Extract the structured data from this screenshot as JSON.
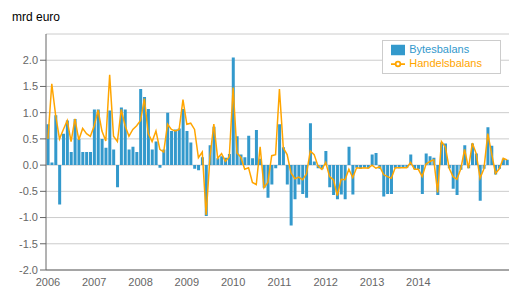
{
  "chart_data": {
    "type": "bar",
    "title": "mrd euro",
    "categories": [
      "2006",
      null,
      null,
      null,
      null,
      null,
      null,
      null,
      null,
      null,
      null,
      null,
      "2007",
      null,
      null,
      null,
      null,
      null,
      null,
      null,
      null,
      null,
      null,
      null,
      "2008",
      null,
      null,
      null,
      null,
      null,
      null,
      null,
      null,
      null,
      null,
      null,
      "2009",
      null,
      null,
      null,
      null,
      null,
      null,
      null,
      null,
      null,
      null,
      null,
      "2010",
      null,
      null,
      null,
      null,
      null,
      null,
      null,
      null,
      null,
      null,
      null,
      "2011",
      null,
      null,
      null,
      null,
      null,
      null,
      null,
      null,
      null,
      null,
      null,
      "2012",
      null,
      null,
      null,
      null,
      null,
      null,
      null,
      null,
      null,
      null,
      null,
      "2013",
      null,
      null,
      null,
      null,
      null,
      null,
      null,
      null,
      null,
      null,
      null,
      "2014",
      null,
      null,
      null,
      null,
      null,
      null,
      null,
      null,
      null,
      null,
      null,
      null,
      null,
      null,
      null,
      null,
      null,
      null,
      null,
      null,
      null,
      null,
      null
    ],
    "series": [
      {
        "name": "Bytesbalans",
        "type": "bar",
        "color": "#3399CC",
        "values": [
          0.78,
          0.05,
          0.95,
          -0.75,
          0.6,
          0.85,
          0.25,
          0.88,
          0.5,
          0.25,
          0.25,
          0.25,
          1.06,
          1.06,
          0.5,
          0.33,
          1.04,
          0.3,
          -0.42,
          1.1,
          1.06,
          0.3,
          0.35,
          0.25,
          1.45,
          1.3,
          1.07,
          0.3,
          0.45,
          -0.05,
          0.3,
          1.0,
          0.65,
          0.68,
          0.7,
          1.07,
          0.65,
          0.43,
          -0.07,
          -0.1,
          0.15,
          -0.97,
          0.38,
          0.73,
          0.13,
          0.17,
          0.14,
          0.21,
          2.05,
          0.55,
          0.2,
          0.15,
          0.56,
          0.13,
          0.67,
          0.12,
          -0.43,
          -0.62,
          -0.37,
          -0.06,
          0.78,
          0.34,
          -0.37,
          -1.15,
          -0.65,
          -0.37,
          -0.55,
          -0.62,
          0.8,
          0.07,
          -0.06,
          -0.08,
          0.27,
          -0.42,
          -0.57,
          -0.65,
          -0.56,
          -0.65,
          0.35,
          -0.56,
          -0.05,
          -0.07,
          -0.05,
          -0.06,
          0.2,
          0.23,
          -0.07,
          -0.6,
          -0.55,
          -0.55,
          -0.06,
          -0.06,
          -0.05,
          -0.05,
          0.2,
          -0.08,
          -0.08,
          -0.55,
          0.22,
          0.17,
          0.14,
          -0.57,
          0.43,
          0.41,
          -0.06,
          -0.45,
          -0.57,
          -0.09,
          0.38,
          -0.06,
          0.41,
          0.22,
          -0.68,
          -0.07,
          0.72,
          0.37,
          -0.18,
          -0.07,
          0.12,
          0.1
        ]
      },
      {
        "name": "Handelsbalans",
        "type": "line",
        "color": "#FFA500",
        "values": [
          0.5,
          1.55,
          0.95,
          0.5,
          0.68,
          0.85,
          0.45,
          0.88,
          0.48,
          0.7,
          0.6,
          0.55,
          0.75,
          1.05,
          0.65,
          0.46,
          1.72,
          0.55,
          0.45,
          1.06,
          0.75,
          0.55,
          0.68,
          0.75,
          0.85,
          1.27,
          0.6,
          0.45,
          0.65,
          0.3,
          0.25,
          0.78,
          0.68,
          0.65,
          0.68,
          1.25,
          0.78,
          0.8,
          0.68,
          0.14,
          0.25,
          -0.95,
          0.16,
          0.78,
          0.13,
          0.22,
          0.07,
          0.16,
          1.48,
          0.23,
          0.15,
          -0.08,
          -0.05,
          -0.33,
          -0.37,
          0.35,
          -0.43,
          -0.33,
          0.18,
          0.2,
          1.45,
          0.33,
          0.2,
          -0.15,
          -0.26,
          -0.23,
          -0.28,
          -0.17,
          0.27,
          0.2,
          -0.02,
          -0.08,
          0.05,
          -0.22,
          -0.28,
          -0.58,
          -0.27,
          -0.28,
          -0.08,
          -0.24,
          -0.05,
          -0.06,
          -0.05,
          -0.06,
          0.0,
          -0.06,
          -0.03,
          -0.18,
          -0.22,
          -0.25,
          -0.05,
          -0.05,
          -0.05,
          -0.05,
          0.05,
          -0.08,
          -0.08,
          -0.22,
          0.02,
          0.07,
          0.1,
          -0.52,
          0.45,
          0.35,
          -0.06,
          -0.22,
          -0.27,
          -0.07,
          0.3,
          -0.06,
          0.42,
          0.22,
          -0.25,
          -0.07,
          0.6,
          0.22,
          -0.16,
          -0.07,
          0.13,
          0.1
        ]
      }
    ],
    "ylim": [
      -2.0,
      2.5
    ],
    "yticks": [
      {
        "value": -2.0,
        "label": "-2.0"
      },
      {
        "value": -1.5,
        "label": "-1.5"
      },
      {
        "value": -1.0,
        "label": "-1.0"
      },
      {
        "value": -0.5,
        "label": "-0.5"
      },
      {
        "value": 0.0,
        "label": "0.0"
      },
      {
        "value": 0.5,
        "label": "0.5"
      },
      {
        "value": 1.0,
        "label": "1.0"
      },
      {
        "value": 1.5,
        "label": "1.5"
      },
      {
        "value": 2.0,
        "label": "2.0"
      }
    ],
    "grid": true,
    "legend": "upper right"
  }
}
